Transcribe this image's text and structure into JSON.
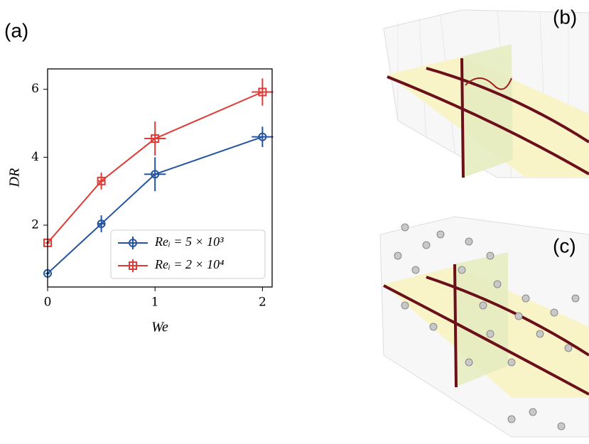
{
  "chart_data": {
    "type": "line",
    "panel_labels": [
      "(a)",
      "(b)",
      "(c)"
    ],
    "xlabel": "We",
    "ylabel": "DR",
    "x": [
      0,
      0.5,
      1,
      2
    ],
    "xlim": [
      0,
      2.09
    ],
    "xticks": [
      0,
      1,
      2
    ],
    "ylim": [
      0.18,
      6.6
    ],
    "yticks": [
      2,
      4,
      6
    ],
    "legend_position": "lower right",
    "series": [
      {
        "name": "Reᵢ = 5 × 10³",
        "color": "#2453a0",
        "marker": "circle",
        "values": [
          0.58,
          2.04,
          3.5,
          4.6
        ],
        "yerr": [
          0.05,
          0.25,
          0.5,
          0.3
        ],
        "xerr": [
          0.02,
          0.03,
          0.1,
          0.1
        ]
      },
      {
        "name": "Reᵢ = 2 × 10⁴",
        "color": "#e03a36",
        "marker": "square",
        "values": [
          1.48,
          3.3,
          4.55,
          5.92
        ],
        "yerr": [
          0.05,
          0.25,
          0.5,
          0.4
        ],
        "xerr": [
          0.02,
          0.03,
          0.1,
          0.1
        ]
      }
    ]
  }
}
